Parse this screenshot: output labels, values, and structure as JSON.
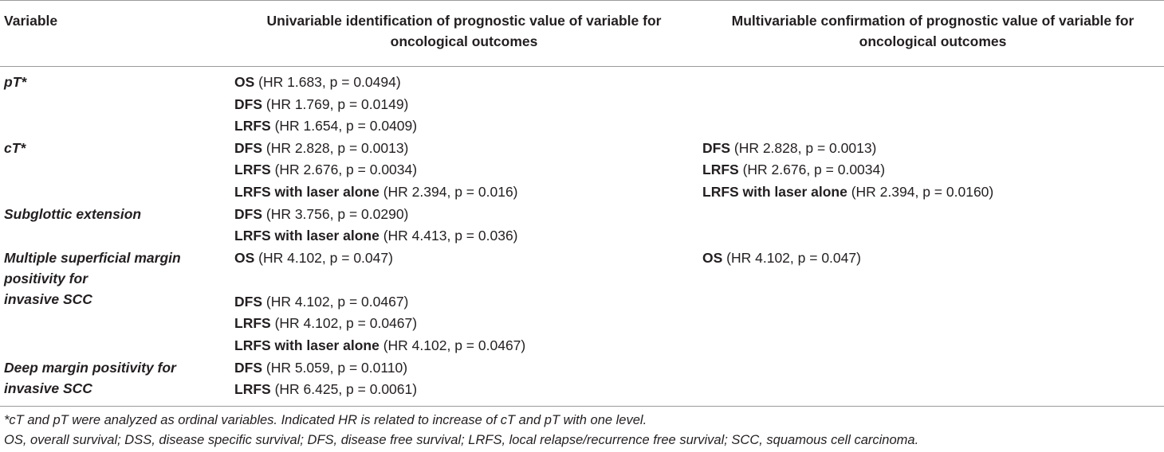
{
  "header": {
    "col1": "Variable",
    "col2_line1": "Univariable identification of prognostic value of variable for",
    "col2_line2": "oncological outcomes",
    "col3_line1": "Multivariable confirmation of prognostic value of variable for",
    "col3_line2": "oncological outcomes"
  },
  "variables": {
    "pt": "pT*",
    "ct": "cT*",
    "subglottic": "Subglottic extension",
    "multiple_l1": "Multiple superficial margin",
    "multiple_l2": "positivity for",
    "multiple_l3": "invasive SCC",
    "deep_l1": "Deep margin positivity for",
    "deep_l2": "invasive SCC"
  },
  "univariable": [
    {
      "outcome": "OS",
      "stat": " (HR 1.683, p = 0.0494)"
    },
    {
      "outcome": "DFS",
      "stat": " (HR 1.769, p = 0.0149)"
    },
    {
      "outcome": "LRFS",
      "stat": " (HR 1.654, p = 0.0409)"
    },
    {
      "outcome": "DFS",
      "stat": " (HR 2.828, p = 0.0013)"
    },
    {
      "outcome": "LRFS",
      "stat": " (HR 2.676, p = 0.0034)"
    },
    {
      "outcome": "LRFS with laser alone",
      "stat": " (HR 2.394, p = 0.016)"
    },
    {
      "outcome": "DFS",
      "stat": " (HR 3.756, p = 0.0290)"
    },
    {
      "outcome": "LRFS with laser alone",
      "stat": " (HR 4.413, p = 0.036)"
    },
    {
      "outcome": "OS",
      "stat": " (HR 4.102, p = 0.047)"
    },
    {
      "outcome": "DFS",
      "stat": " (HR 4.102, p = 0.0467)"
    },
    {
      "outcome": "LRFS",
      "stat": " (HR 4.102, p = 0.0467)"
    },
    {
      "outcome": "LRFS with laser alone",
      "stat": " (HR 4.102, p = 0.0467)"
    },
    {
      "outcome": "DFS",
      "stat": " (HR 5.059, p = 0.0110)"
    },
    {
      "outcome": "LRFS",
      "stat": " (HR 6.425, p = 0.0061)"
    }
  ],
  "multivariable": [
    {
      "outcome": "DFS",
      "stat": " (HR 2.828, p = 0.0013)"
    },
    {
      "outcome": "LRFS",
      "stat": " (HR 2.676, p = 0.0034)"
    },
    {
      "outcome": "LRFS with laser alone",
      "stat": " (HR 2.394, p = 0.0160)"
    },
    {
      "outcome": "OS",
      "stat": " (HR 4.102, p = 0.047)"
    }
  ],
  "footnotes": {
    "note1": "*cT and pT were analyzed as ordinal variables. Indicated HR is related to increase of cT and pT with one level.",
    "note2": "OS, overall survival; DSS, disease specific survival; DFS, disease free survival; LRFS, local relapse/recurrence free survival; SCC, squamous cell carcinoma."
  }
}
